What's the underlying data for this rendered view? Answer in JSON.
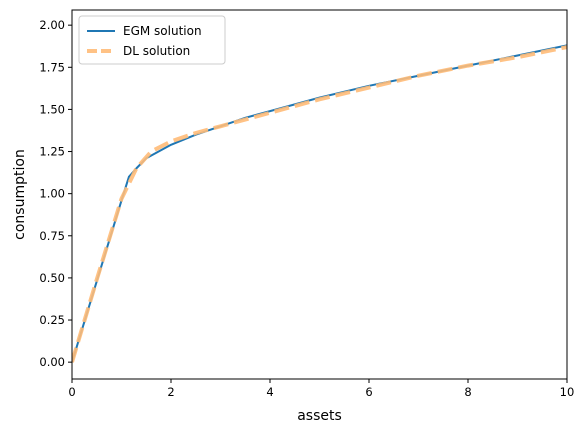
{
  "chart_data": {
    "type": "line",
    "xlabel": "assets",
    "ylabel": "consumption",
    "xlim": [
      0,
      10
    ],
    "ylim": [
      -0.1,
      2.09
    ],
    "xticks": [
      0,
      2,
      4,
      6,
      8,
      10
    ],
    "yticks": [
      0.0,
      0.25,
      0.5,
      0.75,
      1.0,
      1.25,
      1.5,
      1.75,
      2.0
    ],
    "xtick_labels": [
      "0",
      "2",
      "4",
      "6",
      "8",
      "10"
    ],
    "ytick_labels": [
      "0.00",
      "0.25",
      "0.50",
      "0.75",
      "1.00",
      "1.25",
      "1.50",
      "1.75",
      "2.00"
    ],
    "grid": false,
    "legend_position": "top-left",
    "series": [
      {
        "name": "EGM solution",
        "color": "#1f77b4",
        "style": "solid",
        "x": [
          0,
          0.5,
          1.0,
          1.15,
          1.3,
          1.5,
          2.0,
          2.5,
          3.0,
          3.5,
          4.0,
          5.0,
          6.0,
          7.0,
          8.0,
          9.0,
          10.0
        ],
        "y": [
          0.0,
          0.48,
          0.96,
          1.1,
          1.15,
          1.21,
          1.29,
          1.35,
          1.4,
          1.45,
          1.49,
          1.57,
          1.64,
          1.7,
          1.76,
          1.82,
          1.88
        ]
      },
      {
        "name": "DL solution",
        "color": "#ffbb78",
        "style": "dashed",
        "x": [
          0,
          0.5,
          1.0,
          1.3,
          1.6,
          2.0,
          2.5,
          3.0,
          3.5,
          4.0,
          5.0,
          6.0,
          7.0,
          8.0,
          9.0,
          10.0
        ],
        "y": [
          0.0,
          0.49,
          0.97,
          1.15,
          1.25,
          1.31,
          1.36,
          1.4,
          1.44,
          1.48,
          1.56,
          1.63,
          1.7,
          1.76,
          1.81,
          1.87
        ]
      }
    ]
  }
}
